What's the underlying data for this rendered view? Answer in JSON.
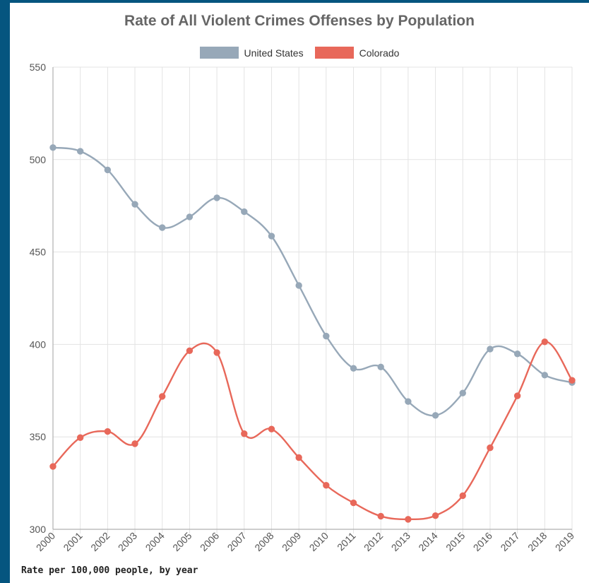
{
  "chart_data": {
    "type": "line",
    "title": "Rate of All Violent Crimes Offenses by Population",
    "xlabel": "",
    "ylabel": "",
    "caption": "Rate per 100,000 people, by year",
    "categories": [
      "2000",
      "2001",
      "2002",
      "2003",
      "2004",
      "2005",
      "2006",
      "2007",
      "2008",
      "2009",
      "2010",
      "2011",
      "2012",
      "2013",
      "2014",
      "2015",
      "2016",
      "2017",
      "2018",
      "2019"
    ],
    "ylim": [
      300,
      550
    ],
    "yticks": [
      "300",
      "350",
      "400",
      "450",
      "500",
      "550"
    ],
    "grid": true,
    "legend_placement": "top",
    "series": [
      {
        "name": "United States",
        "color": "#97a8b8",
        "values": [
          506.5,
          504.5,
          494.4,
          475.8,
          463.2,
          469.0,
          479.3,
          471.8,
          458.6,
          431.9,
          404.5,
          387.1,
          387.8,
          369.1,
          361.6,
          373.7,
          397.5,
          394.9,
          383.4,
          379.4
        ]
      },
      {
        "name": "Colorado",
        "color": "#e8685a",
        "values": [
          334.0,
          349.6,
          352.9,
          346.3,
          371.9,
          396.6,
          395.6,
          351.7,
          354.2,
          338.8,
          323.8,
          314.3,
          307.1,
          305.4,
          307.4,
          318.2,
          344.1,
          372.2,
          401.4,
          380.6
        ]
      }
    ]
  }
}
